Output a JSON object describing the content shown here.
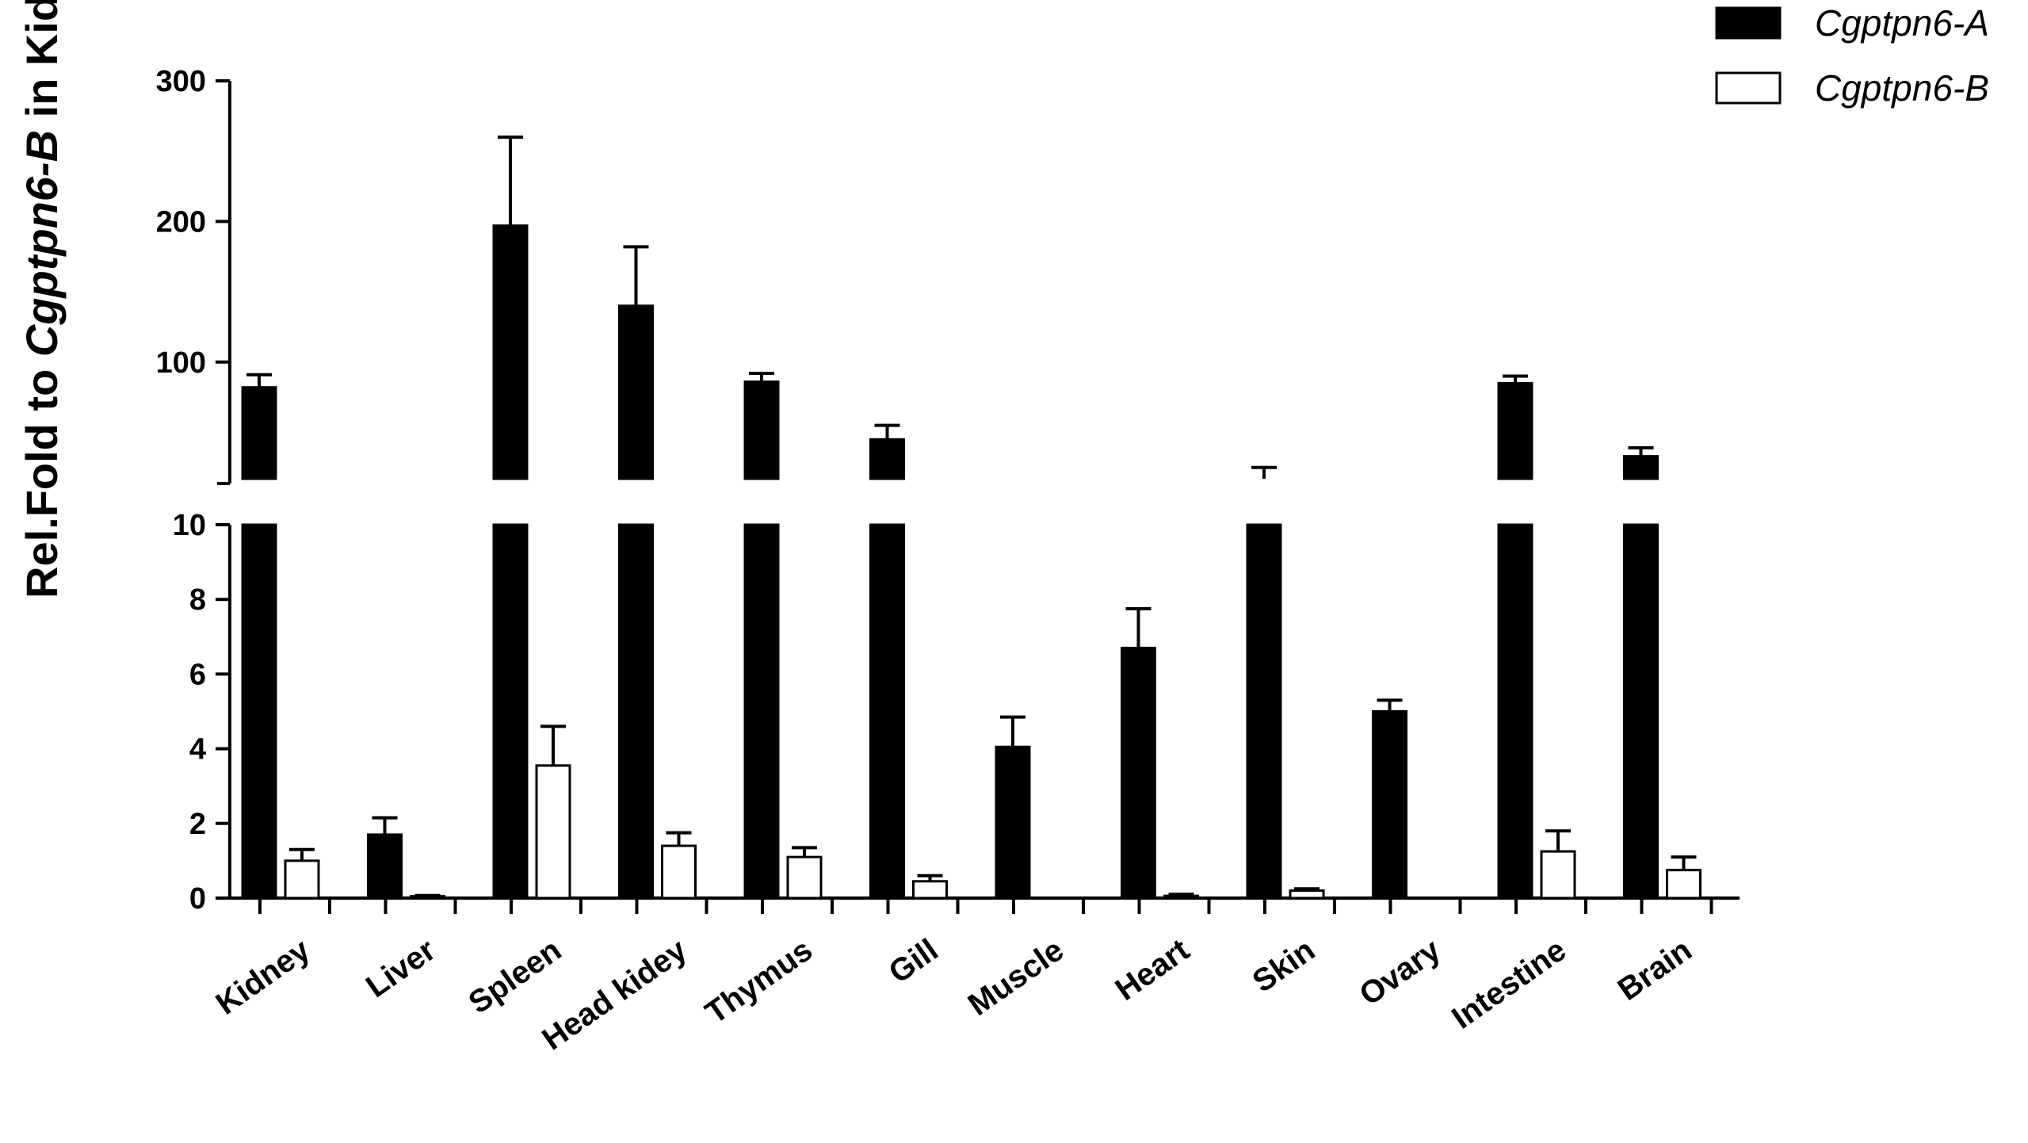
{
  "chart_data": {
    "type": "bar",
    "title": "",
    "xlabel": "",
    "ylabel": {
      "prefix": "Rel.Fold to ",
      "italic": "Cgptpn6-B",
      "suffix": " in Kidney"
    },
    "categories": [
      "Kidney",
      "Liver",
      "Spleen",
      "Head kidey",
      "Thymus",
      "Gill",
      "Muscle",
      "Heart",
      "Skin",
      "Ovary",
      "Intestine",
      "Brain"
    ],
    "series": [
      {
        "name": "Cgptpn6-A",
        "color": "#000000",
        "values": [
          82,
          1.7,
          197,
          140,
          86,
          45,
          4.05,
          6.7,
          17,
          5.0,
          85,
          33
        ],
        "errors": [
          9,
          0.45,
          63,
          42,
          6,
          10,
          0.8,
          1.05,
          8,
          0.3,
          5,
          6
        ]
      },
      {
        "name": "Cgptpn6-B",
        "color": "#ffffff",
        "values": [
          1.0,
          0.05,
          3.55,
          1.4,
          1.1,
          0.45,
          0.0,
          0.06,
          0.2,
          0.0,
          1.25,
          0.75
        ],
        "errors": [
          0.3,
          0.02,
          1.05,
          0.35,
          0.25,
          0.15,
          0.0,
          0.04,
          0.05,
          0.0,
          0.55,
          0.35
        ]
      }
    ],
    "y_axis": {
      "type": "broken",
      "lower_segment": {
        "ylim": [
          0,
          10
        ],
        "ticks": [
          0,
          2,
          4,
          6,
          8,
          10
        ]
      },
      "upper_segment": {
        "ylim": [
          17,
          300
        ],
        "ticks": [
          100,
          200,
          300
        ]
      }
    },
    "legend": {
      "position": "top-right"
    },
    "grid": false
  }
}
